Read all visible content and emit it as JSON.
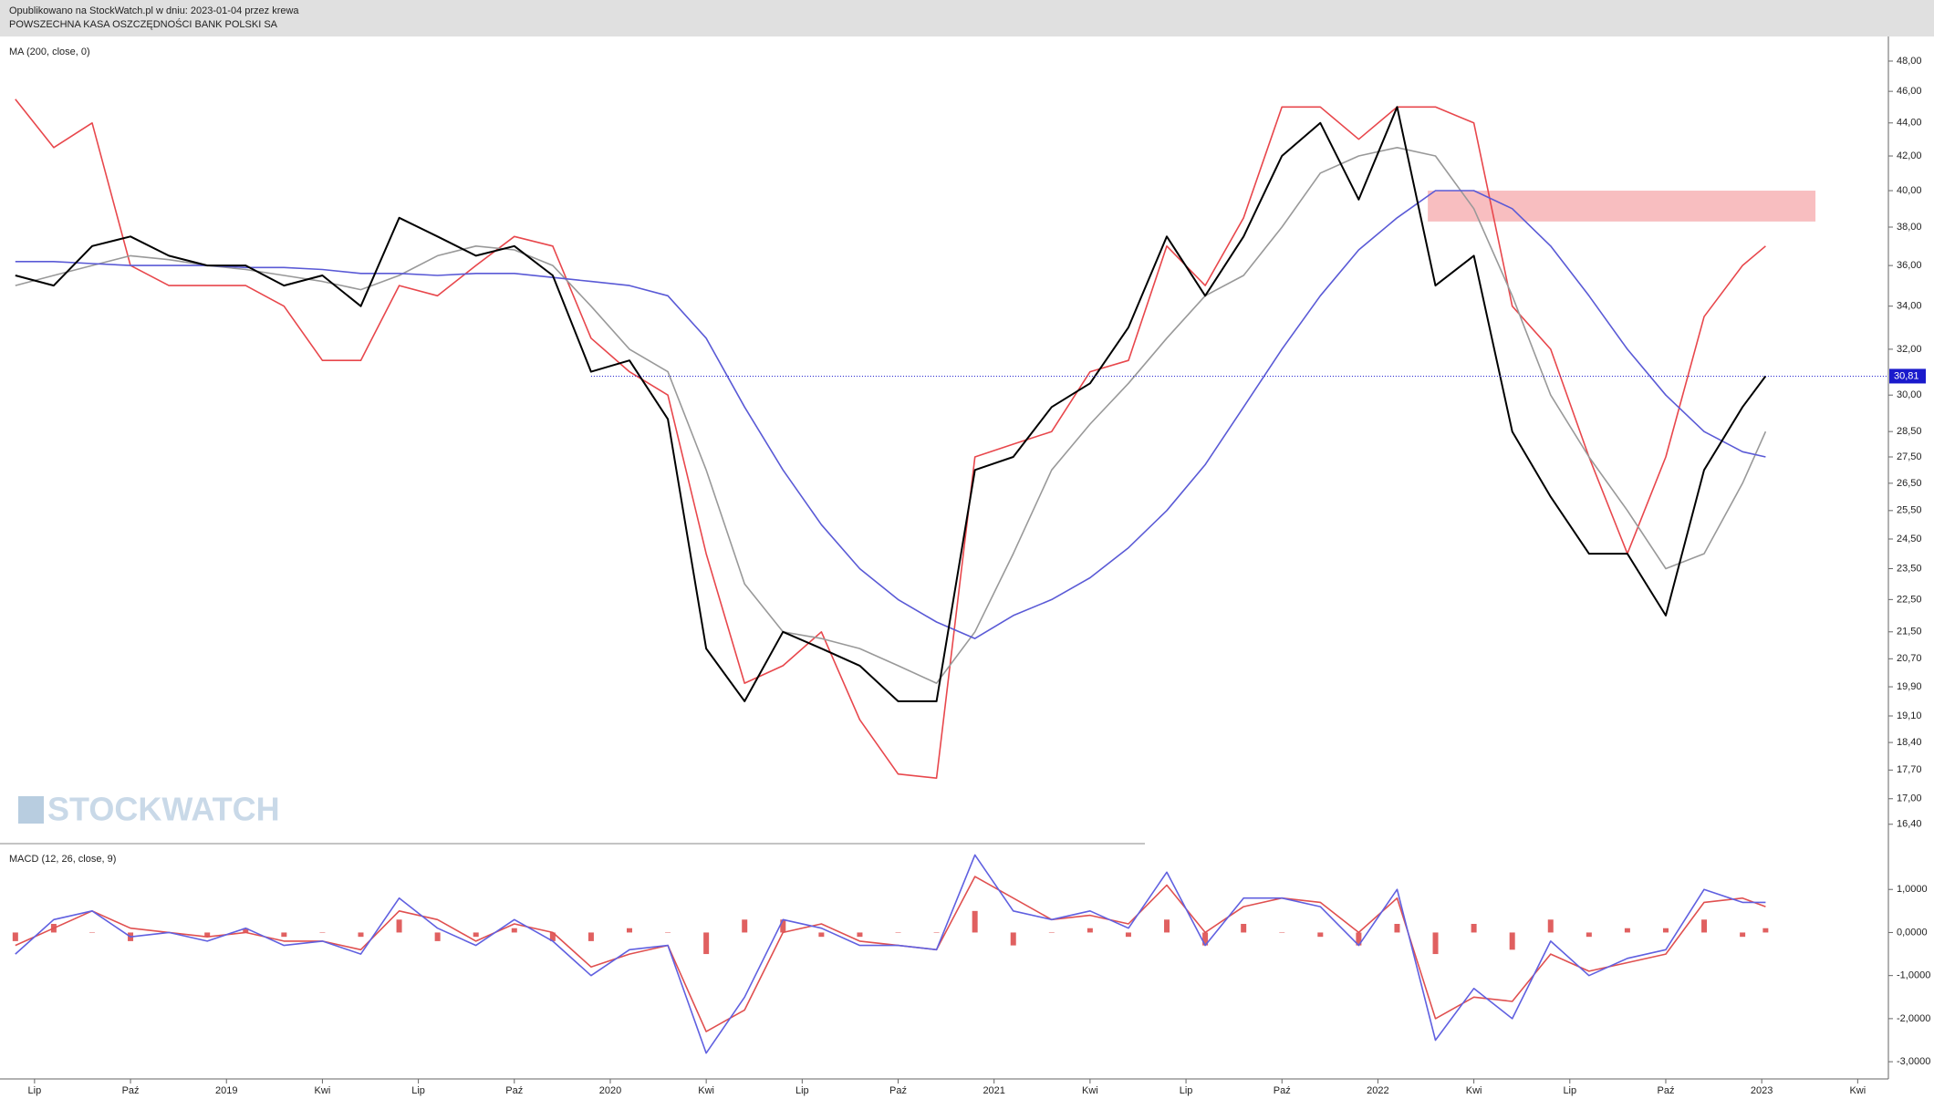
{
  "header": {
    "published": "Opublikowano na StockWatch.pl w dniu: 2023-01-04 przez krewa",
    "instrument": "POWSZECHNA KASA OSZCZĘDNOŚCI BANK POLSKI SA"
  },
  "watermark": "STOCKWATCH",
  "chart_data": [
    {
      "type": "line",
      "title": "MA (200, close, 0)",
      "log_scale": true,
      "x": [
        2018.45,
        2018.55,
        2018.65,
        2018.75,
        2018.85,
        2018.95,
        2019.05,
        2019.15,
        2019.25,
        2019.35,
        2019.45,
        2019.55,
        2019.65,
        2019.75,
        2019.85,
        2019.95,
        2020.05,
        2020.15,
        2020.25,
        2020.35,
        2020.45,
        2020.55,
        2020.65,
        2020.75,
        2020.85,
        2020.95,
        2021.05,
        2021.15,
        2021.25,
        2021.35,
        2021.45,
        2021.55,
        2021.65,
        2021.75,
        2021.85,
        2021.95,
        2022.05,
        2022.15,
        2022.25,
        2022.35,
        2022.45,
        2022.55,
        2022.65,
        2022.75,
        2022.85,
        2022.95,
        2023.01
      ],
      "series": [
        {
          "color": "#e8474c",
          "values": [
            45.5,
            42.5,
            44,
            36,
            35,
            35,
            35,
            34,
            31.5,
            31.5,
            35,
            34.5,
            36,
            37.5,
            37,
            32.5,
            31,
            30,
            24,
            20,
            20.5,
            21.5,
            19,
            17.6,
            17.5,
            27.5,
            28,
            28.5,
            31,
            31.5,
            37,
            35,
            38.5,
            45,
            45,
            43,
            45,
            45,
            44,
            34,
            32,
            27.5,
            24,
            27.5,
            33.5,
            36,
            37
          ]
        },
        {
          "color": "#999999",
          "values": [
            35,
            35.5,
            36,
            36.5,
            36.3,
            36,
            35.8,
            35.5,
            35.2,
            34.8,
            35.5,
            36.5,
            37,
            36.8,
            36,
            34,
            32,
            31,
            27,
            23,
            21.5,
            21.3,
            21,
            20.5,
            20,
            21.5,
            24,
            27,
            28.8,
            30.5,
            32.5,
            34.5,
            35.5,
            38,
            41,
            42,
            42.5,
            42,
            39,
            34.5,
            30,
            27.5,
            25.5,
            23.5,
            24,
            26.5,
            28.5
          ]
        },
        {
          "color": "#5a5ad6",
          "values": [
            36.2,
            36.2,
            36.1,
            36,
            36,
            36,
            35.9,
            35.9,
            35.8,
            35.6,
            35.6,
            35.5,
            35.6,
            35.6,
            35.4,
            35.2,
            35,
            34.5,
            32.5,
            29.5,
            27,
            25,
            23.5,
            22.5,
            21.8,
            21.3,
            22,
            22.5,
            23.2,
            24.2,
            25.5,
            27.2,
            29.5,
            32,
            34.5,
            36.8,
            38.5,
            40,
            40,
            39,
            37,
            34.5,
            32,
            30,
            28.5,
            27.7,
            27.5
          ]
        },
        {
          "color": "#000000",
          "values": [
            35.5,
            35,
            37,
            37.5,
            36.5,
            36,
            36,
            35,
            35.5,
            34,
            38.5,
            37.5,
            36.5,
            37,
            35.5,
            31,
            31.5,
            29,
            21,
            19.5,
            21.5,
            21,
            20.5,
            19.5,
            19.5,
            27,
            27.5,
            29.5,
            30.5,
            33,
            37.5,
            34.5,
            37.5,
            42,
            44,
            39.5,
            45,
            35,
            36.5,
            28.5,
            26,
            24,
            24,
            22,
            27,
            29.5,
            30.81
          ]
        }
      ],
      "zone": {
        "x": [
          2022.13,
          2023.14
        ],
        "y": [
          38.3,
          40.0
        ],
        "color": "#f7b3b5"
      },
      "price_line": {
        "value": 30.81,
        "label": "30,81",
        "from": 2019.95,
        "color": "#1a1acc"
      },
      "xlim": [
        2018.41,
        2023.33
      ],
      "ylim": [
        16.0,
        49.5
      ],
      "yticks": [
        {
          "value": 48,
          "label": "48,00"
        },
        {
          "value": 46,
          "label": "46,00"
        },
        {
          "value": 44,
          "label": "44,00"
        },
        {
          "value": 42,
          "label": "42,00"
        },
        {
          "value": 40,
          "label": "40,00"
        },
        {
          "value": 38,
          "label": "38,00"
        },
        {
          "value": 36,
          "label": "36,00"
        },
        {
          "value": 34,
          "label": "34,00"
        },
        {
          "value": 32,
          "label": "32,00"
        },
        {
          "value": 30,
          "label": "30,00"
        },
        {
          "value": 28.5,
          "label": "28,50"
        },
        {
          "value": 27.5,
          "label": "27,50"
        },
        {
          "value": 26.5,
          "label": "26,50"
        },
        {
          "value": 25.5,
          "label": "25,50"
        },
        {
          "value": 24.5,
          "label": "24,50"
        },
        {
          "value": 23.5,
          "label": "23,50"
        },
        {
          "value": 22.5,
          "label": "22,50"
        },
        {
          "value": 21.5,
          "label": "21,50"
        },
        {
          "value": 20.7,
          "label": "20,70"
        },
        {
          "value": 19.9,
          "label": "19,90"
        },
        {
          "value": 19.1,
          "label": "19,10"
        },
        {
          "value": 18.4,
          "label": "18,40"
        },
        {
          "value": 17.7,
          "label": "17,70"
        },
        {
          "value": 17,
          "label": "17,00"
        },
        {
          "value": 16.4,
          "label": "16,40"
        }
      ],
      "grid": false
    },
    {
      "type": "line",
      "title": "MACD (12, 26, close, 9)",
      "x": [
        2018.45,
        2018.55,
        2018.65,
        2018.75,
        2018.85,
        2018.95,
        2019.05,
        2019.15,
        2019.25,
        2019.35,
        2019.45,
        2019.55,
        2019.65,
        2019.75,
        2019.85,
        2019.95,
        2020.05,
        2020.15,
        2020.25,
        2020.35,
        2020.45,
        2020.55,
        2020.65,
        2020.75,
        2020.85,
        2020.95,
        2021.05,
        2021.15,
        2021.25,
        2021.35,
        2021.45,
        2021.55,
        2021.65,
        2021.75,
        2021.85,
        2021.95,
        2022.05,
        2022.15,
        2022.25,
        2022.35,
        2022.45,
        2022.55,
        2022.65,
        2022.75,
        2022.85,
        2022.95,
        2023.01
      ],
      "series": [
        {
          "color": "#e06060",
          "style": "bar",
          "values": [
            -0.2,
            0.2,
            0,
            -0.2,
            0,
            -0.1,
            0.1,
            -0.1,
            0,
            -0.1,
            0.3,
            -0.2,
            -0.1,
            0.1,
            -0.2,
            -0.2,
            0.1,
            0,
            -0.5,
            0.3,
            0.3,
            -0.1,
            -0.1,
            0,
            0,
            0.5,
            -0.3,
            0,
            0.1,
            -0.1,
            0.3,
            -0.3,
            0.2,
            0,
            -0.1,
            -0.3,
            0.2,
            -0.5,
            0.2,
            -0.4,
            0.3,
            -0.1,
            0.1,
            0.1,
            0.3,
            -0.1,
            0.1
          ]
        },
        {
          "color": "#e05050",
          "values": [
            -0.3,
            0.1,
            0.5,
            0.1,
            0,
            -0.1,
            0,
            -0.2,
            -0.2,
            -0.4,
            0.5,
            0.3,
            -0.2,
            0.2,
            0,
            -0.8,
            -0.5,
            -0.3,
            -2.3,
            -1.8,
            0,
            0.2,
            -0.2,
            -0.3,
            -0.4,
            1.3,
            0.8,
            0.3,
            0.4,
            0.2,
            1.1,
            0,
            0.6,
            0.8,
            0.7,
            0,
            0.8,
            -2.0,
            -1.5,
            -1.6,
            -0.5,
            -0.9,
            -0.7,
            -0.5,
            0.7,
            0.8,
            0.6
          ]
        },
        {
          "color": "#6060e0",
          "values": [
            -0.5,
            0.3,
            0.5,
            -0.1,
            0,
            -0.2,
            0.1,
            -0.3,
            -0.2,
            -0.5,
            0.8,
            0.1,
            -0.3,
            0.3,
            -0.2,
            -1.0,
            -0.4,
            -0.3,
            -2.8,
            -1.5,
            0.3,
            0.1,
            -0.3,
            -0.3,
            -0.4,
            1.8,
            0.5,
            0.3,
            0.5,
            0.1,
            1.4,
            -0.3,
            0.8,
            0.8,
            0.6,
            -0.3,
            1.0,
            -2.5,
            -1.3,
            -2.0,
            -0.2,
            -1.0,
            -0.6,
            -0.4,
            1.0,
            0.7,
            0.7
          ]
        }
      ],
      "xlim": [
        2018.41,
        2023.33
      ],
      "ylim": [
        -3.4,
        2.0
      ],
      "yticks": [
        {
          "value": 1,
          "label": "1,0000"
        },
        {
          "value": 0,
          "label": "0,0000"
        },
        {
          "value": -1,
          "label": "-1,0000"
        },
        {
          "value": -2,
          "label": "-2,0000"
        },
        {
          "value": -3,
          "label": "-3,0000"
        }
      ],
      "xticks": [
        {
          "value": 2018.5,
          "label": "Lip"
        },
        {
          "value": 2018.75,
          "label": "Paź"
        },
        2019,
        {
          "value": 2019.25,
          "label": "Kwi"
        },
        {
          "value": 2019.5,
          "label": "Lip"
        },
        {
          "value": 2019.75,
          "label": "Paź"
        },
        2020,
        {
          "value": 2020.25,
          "label": "Kwi"
        },
        {
          "value": 2020.5,
          "label": "Lip"
        },
        {
          "value": 2020.75,
          "label": "Paź"
        },
        2021,
        {
          "value": 2021.25,
          "label": "Kwi"
        },
        {
          "value": 2021.5,
          "label": "Lip"
        },
        {
          "value": 2021.75,
          "label": "Paź"
        },
        2022,
        {
          "value": 2022.25,
          "label": "Kwi"
        },
        {
          "value": 2022.5,
          "label": "Lip"
        },
        {
          "value": 2022.75,
          "label": "Paź"
        },
        2023,
        {
          "value": 2023.25,
          "label": "Kwi"
        }
      ],
      "grid": false
    }
  ]
}
